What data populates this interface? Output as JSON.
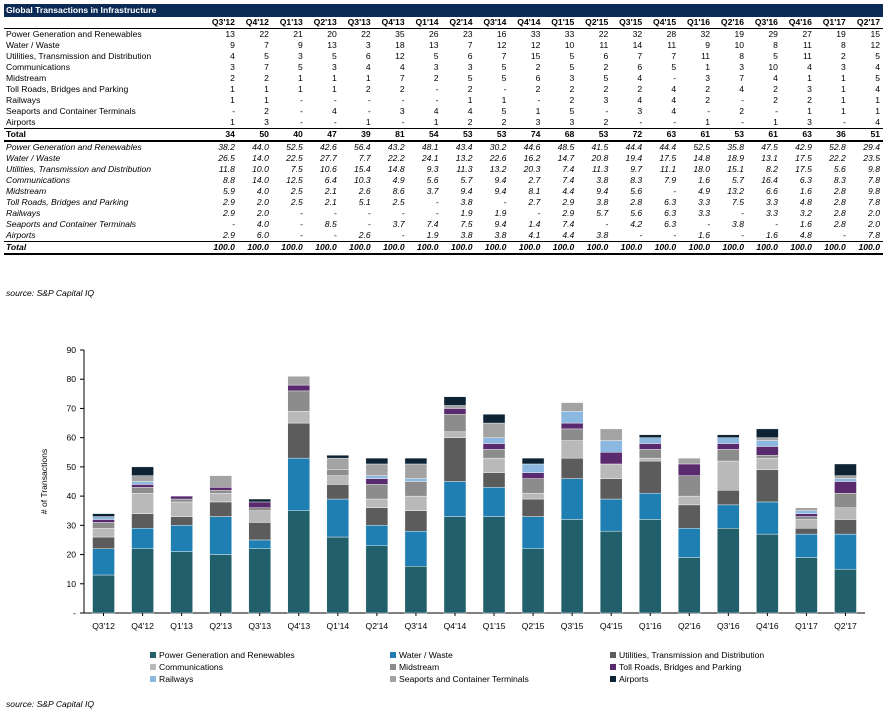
{
  "table": {
    "title": "Global Transactions in Infrastructure",
    "columns": [
      "Q3'12",
      "Q4'12",
      "Q1'13",
      "Q2'13",
      "Q3'13",
      "Q4'13",
      "Q1'14",
      "Q2'14",
      "Q3'14",
      "Q4'14",
      "Q1'15",
      "Q2'15",
      "Q3'15",
      "Q4'15",
      "Q1'16",
      "Q2'16",
      "Q3'16",
      "Q4'16",
      "Q1'17",
      "Q2'17"
    ],
    "count_rows": [
      {
        "label": "Power Generation and Renewables",
        "values": [
          "13",
          "22",
          "21",
          "20",
          "22",
          "35",
          "26",
          "23",
          "16",
          "33",
          "33",
          "22",
          "32",
          "28",
          "32",
          "19",
          "29",
          "27",
          "19",
          "15"
        ]
      },
      {
        "label": "Water / Waste",
        "values": [
          "9",
          "7",
          "9",
          "13",
          "3",
          "18",
          "13",
          "7",
          "12",
          "12",
          "10",
          "11",
          "14",
          "11",
          "9",
          "10",
          "8",
          "11",
          "8",
          "12"
        ]
      },
      {
        "label": "Utilities, Transmission and Distribution",
        "values": [
          "4",
          "5",
          "3",
          "5",
          "6",
          "12",
          "5",
          "6",
          "7",
          "15",
          "5",
          "6",
          "7",
          "7",
          "11",
          "8",
          "5",
          "11",
          "2",
          "5"
        ]
      },
      {
        "label": "Communications",
        "values": [
          "3",
          "7",
          "5",
          "3",
          "4",
          "4",
          "3",
          "3",
          "5",
          "2",
          "5",
          "2",
          "6",
          "5",
          "1",
          "3",
          "10",
          "4",
          "3",
          "4"
        ]
      },
      {
        "label": "Midstream",
        "values": [
          "2",
          "2",
          "1",
          "1",
          "1",
          "7",
          "2",
          "5",
          "5",
          "6",
          "3",
          "5",
          "4",
          "-",
          "3",
          "7",
          "4",
          "1",
          "1",
          "5"
        ]
      },
      {
        "label": "Toll Roads, Bridges and Parking",
        "values": [
          "1",
          "1",
          "1",
          "1",
          "2",
          "2",
          "-",
          "2",
          "-",
          "2",
          "2",
          "2",
          "2",
          "4",
          "2",
          "4",
          "2",
          "3",
          "1",
          "4"
        ]
      },
      {
        "label": "Railways",
        "values": [
          "1",
          "1",
          "-",
          "-",
          "-",
          "-",
          "-",
          "1",
          "1",
          "-",
          "2",
          "3",
          "4",
          "4",
          "2",
          "-",
          "2",
          "2",
          "1",
          "1"
        ]
      },
      {
        "label": "Seaports and Container Terminals",
        "values": [
          "-",
          "2",
          "-",
          "4",
          "-",
          "3",
          "4",
          "4",
          "5",
          "1",
          "5",
          "-",
          "3",
          "4",
          "-",
          "2",
          "-",
          "1",
          "1",
          "1"
        ]
      },
      {
        "label": "Airports",
        "values": [
          "1",
          "3",
          "-",
          "-",
          "1",
          "-",
          "1",
          "2",
          "2",
          "3",
          "3",
          "2",
          "-",
          "-",
          "1",
          "-",
          "1",
          "3",
          "-",
          "4"
        ]
      }
    ],
    "count_total": {
      "label": "Total",
      "values": [
        "34",
        "50",
        "40",
        "47",
        "39",
        "81",
        "54",
        "53",
        "53",
        "74",
        "68",
        "53",
        "72",
        "63",
        "61",
        "53",
        "61",
        "63",
        "36",
        "51"
      ]
    },
    "pct_rows": [
      {
        "label": "Power Generation and Renewables",
        "values": [
          "38.2",
          "44.0",
          "52.5",
          "42.6",
          "56.4",
          "43.2",
          "48.1",
          "43.4",
          "30.2",
          "44.6",
          "48.5",
          "41.5",
          "44.4",
          "44.4",
          "52.5",
          "35.8",
          "47.5",
          "42.9",
          "52.8",
          "29.4"
        ]
      },
      {
        "label": "Water / Waste",
        "values": [
          "26.5",
          "14.0",
          "22.5",
          "27.7",
          "7.7",
          "22.2",
          "24.1",
          "13.2",
          "22.6",
          "16.2",
          "14.7",
          "20.8",
          "19.4",
          "17.5",
          "14.8",
          "18.9",
          "13.1",
          "17.5",
          "22.2",
          "23.5"
        ]
      },
      {
        "label": "Utilities, Transmission and Distribution",
        "values": [
          "11.8",
          "10.0",
          "7.5",
          "10.6",
          "15.4",
          "14.8",
          "9.3",
          "11.3",
          "13.2",
          "20.3",
          "7.4",
          "11.3",
          "9.7",
          "11.1",
          "18.0",
          "15.1",
          "8.2",
          "17.5",
          "5.6",
          "9.8"
        ]
      },
      {
        "label": "Communications",
        "values": [
          "8.8",
          "14.0",
          "12.5",
          "6.4",
          "10.3",
          "4.9",
          "5.6",
          "5.7",
          "9.4",
          "2.7",
          "7.4",
          "3.8",
          "8.3",
          "7.9",
          "1.6",
          "5.7",
          "16.4",
          "6.3",
          "8.3",
          "7.8"
        ]
      },
      {
        "label": "Midstream",
        "values": [
          "5.9",
          "4.0",
          "2.5",
          "2.1",
          "2.6",
          "8.6",
          "3.7",
          "9.4",
          "9.4",
          "8.1",
          "4.4",
          "9.4",
          "5.6",
          "-",
          "4.9",
          "13.2",
          "6.6",
          "1.6",
          "2.8",
          "9.8"
        ]
      },
      {
        "label": "Toll Roads, Bridges and Parking",
        "values": [
          "2.9",
          "2.0",
          "2.5",
          "2.1",
          "5.1",
          "2.5",
          "-",
          "3.8",
          "-",
          "2.7",
          "2.9",
          "3.8",
          "2.8",
          "6.3",
          "3.3",
          "7.5",
          "3.3",
          "4.8",
          "2.8",
          "7.8"
        ]
      },
      {
        "label": "Railways",
        "values": [
          "2.9",
          "2.0",
          "-",
          "-",
          "-",
          "-",
          "-",
          "1.9",
          "1.9",
          "-",
          "2.9",
          "5.7",
          "5.6",
          "6.3",
          "3.3",
          "-",
          "3.3",
          "3.2",
          "2.8",
          "2.0"
        ]
      },
      {
        "label": "Seaports and Container Terminals",
        "values": [
          "-",
          "4.0",
          "-",
          "8.5",
          "-",
          "3.7",
          "7.4",
          "7.5",
          "9.4",
          "1.4",
          "7.4",
          "-",
          "4.2",
          "6.3",
          "-",
          "3.8",
          "-",
          "1.6",
          "2.8",
          "2.0"
        ]
      },
      {
        "label": "Airports",
        "values": [
          "2.9",
          "6.0",
          "-",
          "-",
          "2.6",
          "-",
          "1.9",
          "3.8",
          "3.8",
          "4.1",
          "4.4",
          "3.8",
          "-",
          "-",
          "1.6",
          "-",
          "1.6",
          "4.8",
          "-",
          "7.8"
        ]
      }
    ],
    "pct_total": {
      "label": "Total",
      "values": [
        "100.0",
        "100.0",
        "100.0",
        "100.0",
        "100.0",
        "100.0",
        "100.0",
        "100.0",
        "100.0",
        "100.0",
        "100.0",
        "100.0",
        "100.0",
        "100.0",
        "100.0",
        "100.0",
        "100.0",
        "100.0",
        "100.0",
        "100.0"
      ]
    }
  },
  "source_1": "source:  S&P Capital IQ",
  "source_2": "source:  S&P Capital IQ",
  "chart_data": {
    "type": "bar",
    "stacked": true,
    "categories": [
      "Q3'12",
      "Q4'12",
      "Q1'13",
      "Q2'13",
      "Q3'13",
      "Q4'13",
      "Q1'14",
      "Q2'14",
      "Q3'14",
      "Q4'14",
      "Q1'15",
      "Q2'15",
      "Q3'15",
      "Q4'15",
      "Q1'16",
      "Q2'16",
      "Q3'16",
      "Q4'16",
      "Q1'17",
      "Q2'17"
    ],
    "ylabel": "# of Transactions",
    "ylim": [
      0,
      90
    ],
    "yticks": [
      0,
      10,
      20,
      30,
      40,
      50,
      60,
      70,
      80,
      90
    ],
    "ytick_labels": [
      "-",
      "10",
      "20",
      "30",
      "40",
      "50",
      "60",
      "70",
      "80",
      "90"
    ],
    "grid": false,
    "legend_position": "bottom",
    "series": [
      {
        "name": "Power Generation and Renewables",
        "color": "#215f6b",
        "values": [
          13,
          22,
          21,
          20,
          22,
          35,
          26,
          23,
          16,
          33,
          33,
          22,
          32,
          28,
          32,
          19,
          29,
          27,
          19,
          15
        ]
      },
      {
        "name": "Water / Waste",
        "color": "#1f7fb3",
        "values": [
          9,
          7,
          9,
          13,
          3,
          18,
          13,
          7,
          12,
          12,
          10,
          11,
          14,
          11,
          9,
          10,
          8,
          11,
          8,
          12
        ]
      },
      {
        "name": "Utilities, Transmission and Distribution",
        "color": "#5c5c5c",
        "values": [
          4,
          5,
          3,
          5,
          6,
          12,
          5,
          6,
          7,
          15,
          5,
          6,
          7,
          7,
          11,
          8,
          5,
          11,
          2,
          5
        ]
      },
      {
        "name": "Communications",
        "color": "#b9b9b9",
        "values": [
          3,
          7,
          5,
          3,
          4,
          4,
          3,
          3,
          5,
          2,
          5,
          2,
          6,
          5,
          1,
          3,
          10,
          4,
          3,
          4
        ]
      },
      {
        "name": "Midstream",
        "color": "#8c8c8c",
        "values": [
          2,
          2,
          1,
          1,
          1,
          7,
          2,
          5,
          5,
          6,
          3,
          5,
          4,
          0,
          3,
          7,
          4,
          1,
          1,
          5
        ]
      },
      {
        "name": "Toll Roads, Bridges and Parking",
        "color": "#5a2a6e",
        "values": [
          1,
          1,
          1,
          1,
          2,
          2,
          0,
          2,
          0,
          2,
          2,
          2,
          2,
          4,
          2,
          4,
          2,
          3,
          1,
          4
        ]
      },
      {
        "name": "Railways",
        "color": "#8ab8e0",
        "values": [
          1,
          1,
          0,
          0,
          0,
          0,
          0,
          1,
          1,
          0,
          2,
          3,
          4,
          4,
          2,
          0,
          2,
          2,
          1,
          1
        ]
      },
      {
        "name": "Seaports and Container Terminals",
        "color": "#a3a3a3",
        "values": [
          0,
          2,
          0,
          4,
          0,
          3,
          4,
          4,
          5,
          1,
          5,
          0,
          3,
          4,
          0,
          2,
          0,
          1,
          1,
          1
        ]
      },
      {
        "name": "Airports",
        "color": "#0d2233",
        "values": [
          1,
          3,
          0,
          0,
          1,
          0,
          1,
          2,
          2,
          3,
          3,
          2,
          0,
          0,
          1,
          0,
          1,
          3,
          0,
          4
        ]
      }
    ]
  }
}
